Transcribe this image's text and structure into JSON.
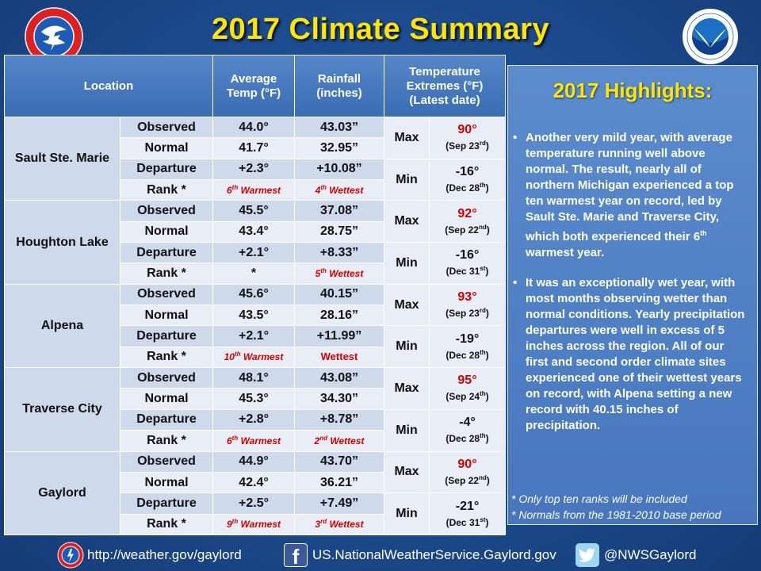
{
  "title": "2017 Climate Summary",
  "table": {
    "headers": {
      "location": "Location",
      "avg_temp": "Average Temp (°F)",
      "rainfall": "Rainfall (inches)",
      "extremes": "Temperature Extremes (°F) (Latest date)"
    },
    "row_labels": [
      "Observed",
      "Normal",
      "Departure",
      "Rank *"
    ],
    "max_label": "Max",
    "min_label": "Min",
    "sites": [
      {
        "name": "Sault Ste. Marie",
        "temp": [
          "44.0°",
          "41.7°",
          "+2.3°"
        ],
        "rain": [
          "43.03”",
          "32.95”",
          "+10.08”"
        ],
        "temp_rank": {
          "num": "6",
          "suf": "th",
          "text": " Warmest"
        },
        "rain_rank": {
          "num": "4",
          "suf": "th",
          "text": " Wettest"
        },
        "max": {
          "val": "90°",
          "date": "(Sep 23",
          "suf": "rd",
          "close": ")"
        },
        "min": {
          "val": "-16°",
          "date": "(Dec 28",
          "suf": "th",
          "close": ")"
        }
      },
      {
        "name": "Houghton Lake",
        "temp": [
          "45.5°",
          "43.4°",
          "+2.1°"
        ],
        "rain": [
          "37.08”",
          "28.75”",
          "+8.33”"
        ],
        "temp_rank": {
          "plain": "*"
        },
        "rain_rank": {
          "num": "5",
          "suf": "th",
          "text": " Wettest"
        },
        "max": {
          "val": "92°",
          "date": "(Sep 22",
          "suf": "nd",
          "close": ")"
        },
        "min": {
          "val": "-16°",
          "date": "(Dec 31",
          "suf": "st",
          "close": ")"
        }
      },
      {
        "name": "Alpena",
        "temp": [
          "45.6°",
          "43.5°",
          "+2.1°"
        ],
        "rain": [
          "40.15”",
          "28.16”",
          "+11.99”"
        ],
        "temp_rank": {
          "num": "10",
          "suf": "th",
          "text": " Warmest"
        },
        "rain_rank": {
          "word": "Wettest"
        },
        "max": {
          "val": "93°",
          "date": "(Sep 23",
          "suf": "rd",
          "close": ")"
        },
        "min": {
          "val": "-19°",
          "date": "(Dec 28",
          "suf": "th",
          "close": ")"
        }
      },
      {
        "name": "Traverse City",
        "temp": [
          "48.1°",
          "45.3°",
          "+2.8°"
        ],
        "rain": [
          "43.08”",
          "34.30”",
          "+8.78”"
        ],
        "temp_rank": {
          "num": "6",
          "suf": "th",
          "text": " Warmest"
        },
        "rain_rank": {
          "num": "2",
          "suf": "nd",
          "text": " Wettest"
        },
        "max": {
          "val": "95°",
          "date": "(Sep 24",
          "suf": "th",
          "close": ")"
        },
        "min": {
          "val": "-4°",
          "date": "(Dec 28",
          "suf": "th",
          "close": ")"
        }
      },
      {
        "name": "Gaylord",
        "temp": [
          "44.9°",
          "42.4°",
          "+2.5°"
        ],
        "rain": [
          "43.70”",
          "36.21”",
          "+7.49”"
        ],
        "temp_rank": {
          "num": "9",
          "suf": "th",
          "text": " Warmest"
        },
        "rain_rank": {
          "num": "3",
          "suf": "rd",
          "text": " Wettest"
        },
        "max": {
          "val": "90°",
          "date": "(Sep 22",
          "suf": "nd",
          "close": ")"
        },
        "min": {
          "val": "-21°",
          "date": "(Dec 31",
          "suf": "st",
          "close": ")"
        }
      }
    ]
  },
  "highlights": {
    "title": "2017 Highlights:",
    "b1_a": "Another very mild year, with average temperature running well above normal.  The result, nearly all of northern Michigan experienced a top ten warmest year on record, led by Sault Ste. Marie and Traverse City, which both experienced their 6",
    "b1_sup": "th",
    "b1_b": " warmest year.",
    "b2": "It was an exceptionally wet year, with most months observing wetter than normal conditions.  Yearly precipitation departures were well in excess of 5 inches across the region.  All of our first and second order climate sites experienced one of their wettest years on record, with Alpena setting a new record with 40.15 inches of precipitation.",
    "note1": "*  Only top ten ranks will be included",
    "note2": "*  Normals from the 1981-2010 base period"
  },
  "footer": {
    "website": "http://weather.gov/gaylord",
    "facebook": "US.NationalWeatherService.Gaylord.gov",
    "twitter": "@NWSGaylord"
  },
  "colors": {
    "title": "#ffe600",
    "rank_red": "#d40000",
    "background": "#1d4e93"
  },
  "icons": [
    "nws-logo",
    "noaa-logo",
    "facebook-icon",
    "twitter-icon"
  ]
}
